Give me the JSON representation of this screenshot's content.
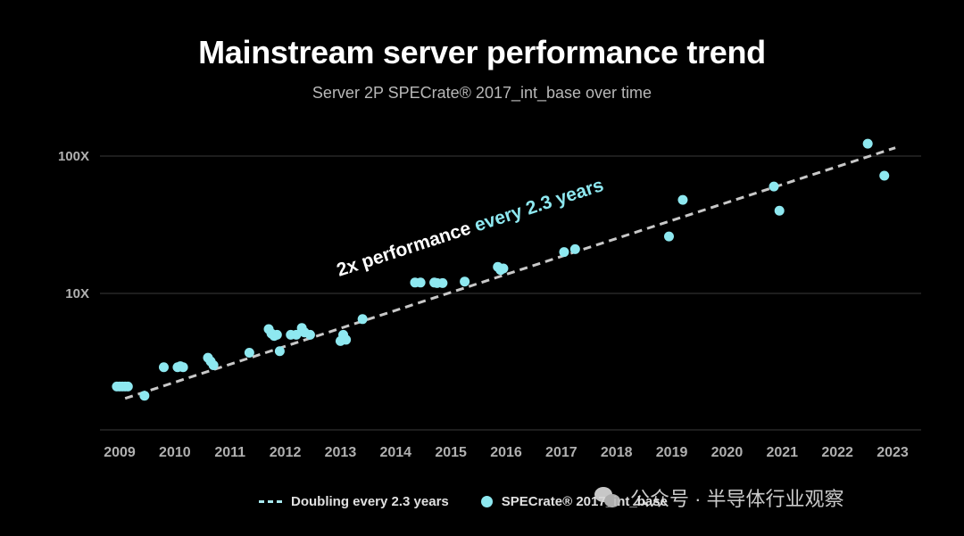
{
  "title": "Mainstream server performance trend",
  "subtitle": "Server 2P SPECrate® 2017_int_base over time",
  "annotation": {
    "prefix": "2x performance ",
    "highlight": "every 2.3 years",
    "prefix_color": "#ffffff",
    "highlight_color": "#8ee8f0"
  },
  "colors": {
    "background": "#000000",
    "points": "#8ee8f0",
    "trend": "#c8c8c8",
    "grid": "#3a3a3a",
    "axis_text": "#b0b0b0"
  },
  "legend": {
    "trend_label": "Doubling every 2.3 years",
    "points_label": "SPECrate® 2017_int_base"
  },
  "watermark": {
    "text": "公众号 · 半导体行业观察",
    "icon": "wechat-icon"
  },
  "chart_data": {
    "type": "scatter",
    "title": "Mainstream server performance trend",
    "subtitle": "Server 2P SPECrate® 2017_int_base over time",
    "x_ticks": [
      "2009",
      "2010",
      "2011",
      "2012",
      "2013",
      "2014",
      "2015",
      "2016",
      "2017",
      "2018",
      "2019",
      "2020",
      "2021",
      "2022",
      "2023"
    ],
    "y_ticks": [
      "10X",
      "100X"
    ],
    "y_scale": "log",
    "xlim": [
      2008.95,
      2023.1
    ],
    "ylim": [
      1.0,
      180
    ],
    "grid": "horizontal",
    "legend_position": "bottom",
    "series": [
      {
        "name": "SPECrate® 2017_int_base",
        "kind": "scatter",
        "points": [
          [
            2008.95,
            2.1
          ],
          [
            2009.0,
            2.1
          ],
          [
            2009.05,
            2.1
          ],
          [
            2009.1,
            2.1
          ],
          [
            2009.15,
            2.1
          ],
          [
            2009.45,
            1.8
          ],
          [
            2009.8,
            2.9
          ],
          [
            2010.05,
            2.9
          ],
          [
            2010.1,
            2.95
          ],
          [
            2010.15,
            2.9
          ],
          [
            2010.6,
            3.4
          ],
          [
            2010.65,
            3.2
          ],
          [
            2010.7,
            3.0
          ],
          [
            2011.35,
            3.7
          ],
          [
            2011.7,
            5.5
          ],
          [
            2011.75,
            5.1
          ],
          [
            2011.8,
            4.9
          ],
          [
            2011.85,
            5.0
          ],
          [
            2011.9,
            3.8
          ],
          [
            2012.1,
            5.0
          ],
          [
            2012.2,
            5.0
          ],
          [
            2012.3,
            5.6
          ],
          [
            2012.35,
            5.2
          ],
          [
            2012.45,
            5.0
          ],
          [
            2013.0,
            4.5
          ],
          [
            2013.05,
            5.0
          ],
          [
            2013.1,
            4.6
          ],
          [
            2013.4,
            6.5
          ],
          [
            2014.35,
            12.0
          ],
          [
            2014.45,
            12.0
          ],
          [
            2014.7,
            12.0
          ],
          [
            2014.75,
            11.9
          ],
          [
            2014.85,
            11.9
          ],
          [
            2015.25,
            12.2
          ],
          [
            2015.85,
            15.6
          ],
          [
            2015.9,
            14.8
          ],
          [
            2015.95,
            15.2
          ],
          [
            2017.05,
            20.0
          ],
          [
            2017.25,
            21.0
          ],
          [
            2018.95,
            26.0
          ],
          [
            2019.2,
            48.0
          ],
          [
            2020.85,
            60.0
          ],
          [
            2020.95,
            40.0
          ],
          [
            2022.55,
            123.0
          ],
          [
            2022.85,
            72.0
          ]
        ]
      },
      {
        "name": "Doubling every 2.3 years",
        "kind": "trend",
        "points": [
          [
            2009.1,
            1.72
          ],
          [
            2023.05,
            115.0
          ]
        ]
      }
    ]
  }
}
